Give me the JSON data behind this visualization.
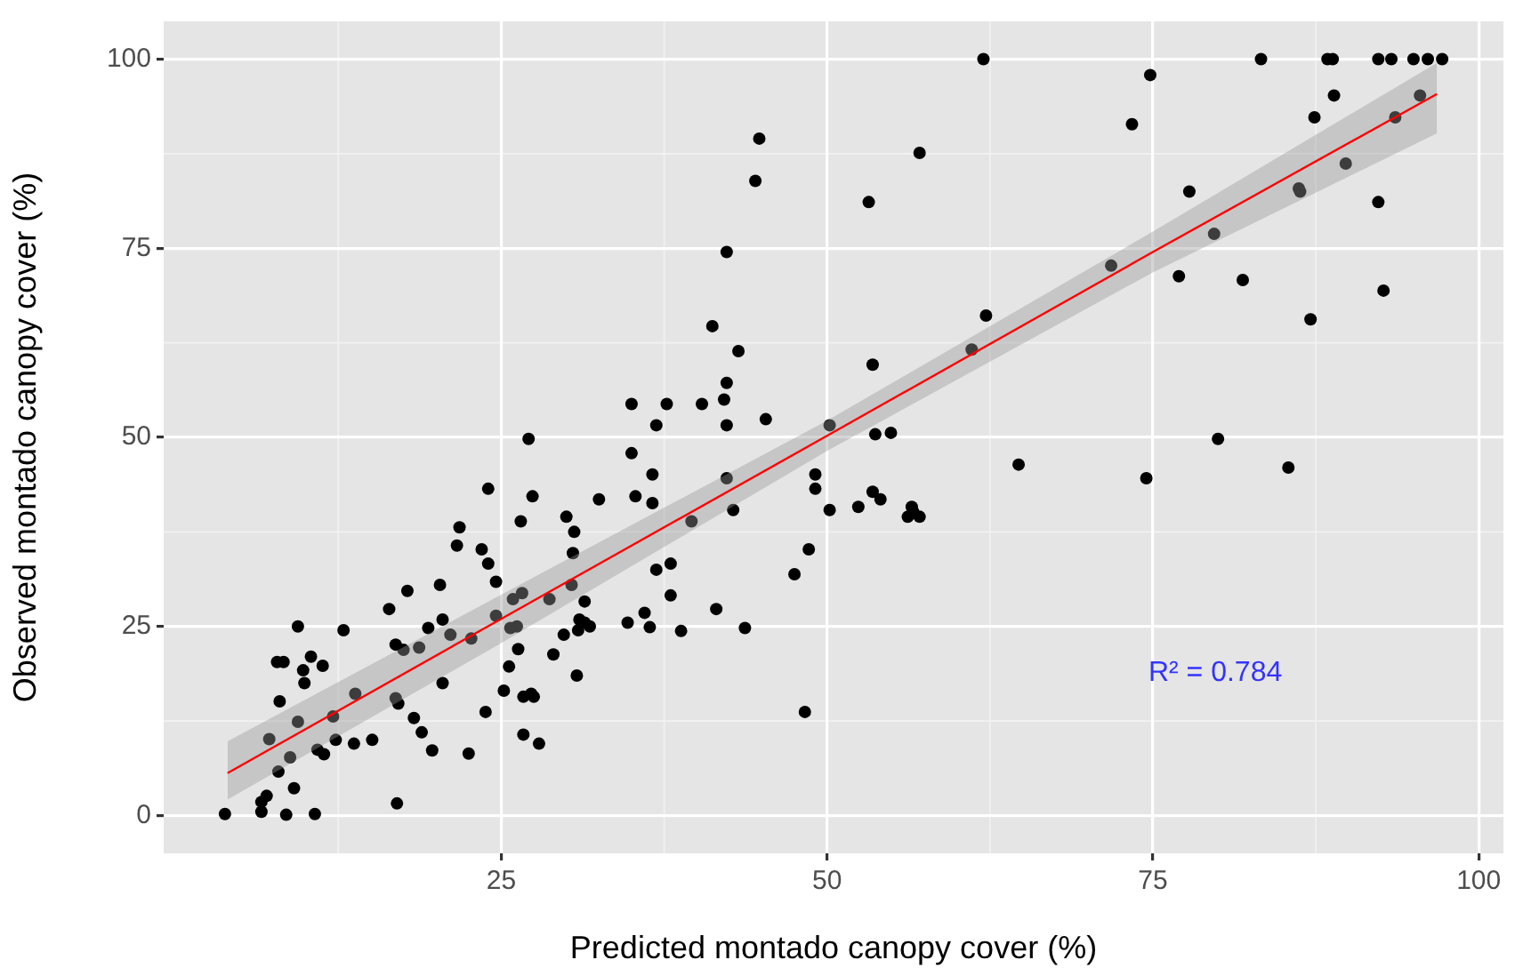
{
  "chart_data": {
    "type": "scatter",
    "xlabel": "Predicted montado canopy cover (%)",
    "ylabel": "Observed montado canopy cover (%)",
    "xlim": [
      -0.9,
      101.9
    ],
    "ylim": [
      -5,
      105
    ],
    "xticks": [
      25,
      50,
      75,
      100
    ],
    "yticks": [
      0,
      25,
      50,
      75,
      100
    ],
    "grid": true,
    "legend": false,
    "annotations": [
      "R² = 0.784"
    ],
    "series": [
      {
        "marker": "circle",
        "color": "#000000",
        "x": [
          27.1,
          24.0,
          27.4,
          32.5,
          26.5,
          30.0,
          30.6,
          30.5,
          21.8,
          21.6,
          23.5,
          24.0,
          24.6,
          17.8,
          20.3,
          16.4,
          9.4,
          12.9,
          19.4,
          20.5,
          21.1,
          16.9,
          17.5,
          18.7,
          7.8,
          8.3,
          10.4,
          11.3,
          9.8,
          9.9,
          8.0,
          9.4,
          7.2,
          8.8,
          7.9,
          9.1,
          7.0,
          6.6,
          6.6,
          3.8,
          8.5,
          10.7,
          12.1,
          13.8,
          12.3,
          13.7,
          15.1,
          10.9,
          11.4,
          17.0,
          16.9,
          17.1,
          18.3,
          18.9,
          19.7,
          22.5,
          20.5,
          23.8,
          25.2,
          25.6,
          26.3,
          26.7,
          27.3,
          27.5,
          29.0,
          30.8,
          26.7,
          27.9,
          24.6,
          25.7,
          26.2,
          25.9,
          26.6,
          28.7,
          29.8,
          30.4,
          31.4,
          31.0,
          31.4,
          31.8,
          30.9,
          22.7,
          35.0,
          36.6,
          35.3,
          36.6,
          42.3,
          42.8,
          39.6,
          36.9,
          38.0,
          38.0,
          34.7,
          36.0,
          36.4,
          38.8,
          41.5,
          43.7,
          48.3,
          47.5,
          48.6,
          49.1,
          49.1,
          50.2,
          52.4,
          53.5,
          54.1,
          56.5,
          56.2,
          57.1,
          56.6,
          64.7,
          62.0,
          44.8,
          44.5,
          57.1,
          53.2,
          42.3,
          41.2,
          62.2,
          43.2,
          61.1,
          53.5,
          42.3,
          42.1,
          40.4,
          37.7,
          35.0,
          36.9,
          42.3,
          45.3,
          53.7,
          54.9,
          50.2,
          83.3,
          88.4,
          88.8,
          92.3,
          93.3,
          95.0,
          96.1,
          97.2,
          74.8,
          73.4,
          88.9,
          87.4,
          95.5,
          93.6,
          89.8,
          86.2,
          86.3,
          77.8,
          92.3,
          79.7,
          71.8,
          77.0,
          81.9,
          92.7,
          87.1,
          80.0,
          74.5,
          85.4
        ],
        "values": [
          49.8,
          43.2,
          42.2,
          41.8,
          38.9,
          39.5,
          37.5,
          34.7,
          38.1,
          35.7,
          35.2,
          33.3,
          30.9,
          29.7,
          30.5,
          27.3,
          25.0,
          24.5,
          24.8,
          25.9,
          23.9,
          22.6,
          21.9,
          22.2,
          20.3,
          20.3,
          21.0,
          19.8,
          19.2,
          17.5,
          15.1,
          12.4,
          10.1,
          7.7,
          5.8,
          3.6,
          2.6,
          1.8,
          0.5,
          0.2,
          0.1,
          0.2,
          13.1,
          16.1,
          10.0,
          9.5,
          10.0,
          8.7,
          8.1,
          1.6,
          15.5,
          14.8,
          12.9,
          11.0,
          8.6,
          8.2,
          17.5,
          13.7,
          16.5,
          19.7,
          22.0,
          15.7,
          16.1,
          15.7,
          21.3,
          18.5,
          10.7,
          9.5,
          26.4,
          24.8,
          25.0,
          28.6,
          29.4,
          28.6,
          23.9,
          30.5,
          28.3,
          25.9,
          25.5,
          25.0,
          24.5,
          23.4,
          47.9,
          45.1,
          42.2,
          41.3,
          44.6,
          40.4,
          38.9,
          32.5,
          33.3,
          29.1,
          25.5,
          26.8,
          24.9,
          24.4,
          27.3,
          24.8,
          13.7,
          31.9,
          35.2,
          45.1,
          43.2,
          40.4,
          40.8,
          42.8,
          41.8,
          40.8,
          39.5,
          39.5,
          40.2,
          46.4,
          100,
          89.5,
          83.9,
          87.6,
          81.1,
          74.5,
          64.7,
          66.1,
          61.4,
          61.6,
          59.6,
          57.2,
          55.0,
          54.4,
          54.4,
          54.4,
          51.6,
          51.6,
          52.4,
          50.4,
          50.6,
          51.6,
          100,
          100,
          100,
          100,
          100,
          100,
          100,
          100,
          97.9,
          91.4,
          95.2,
          92.3,
          95.2,
          92.3,
          86.2,
          82.9,
          82.5,
          82.5,
          81.1,
          76.9,
          72.7,
          71.3,
          70.8,
          69.4,
          65.6,
          49.8,
          44.6,
          46.0
        ]
      },
      {
        "type": "line",
        "marker": "none",
        "color": "#ff0000",
        "x": [
          4,
          25,
          50,
          75,
          96.8
        ],
        "values": [
          5.6,
          26,
          50.2,
          74.5,
          95.4
        ],
        "lower": [
          2.1,
          22.8,
          48.2,
          71.8,
          90.2
        ],
        "upper": [
          9.8,
          29.2,
          52.2,
          77.2,
          99.5
        ]
      }
    ]
  }
}
